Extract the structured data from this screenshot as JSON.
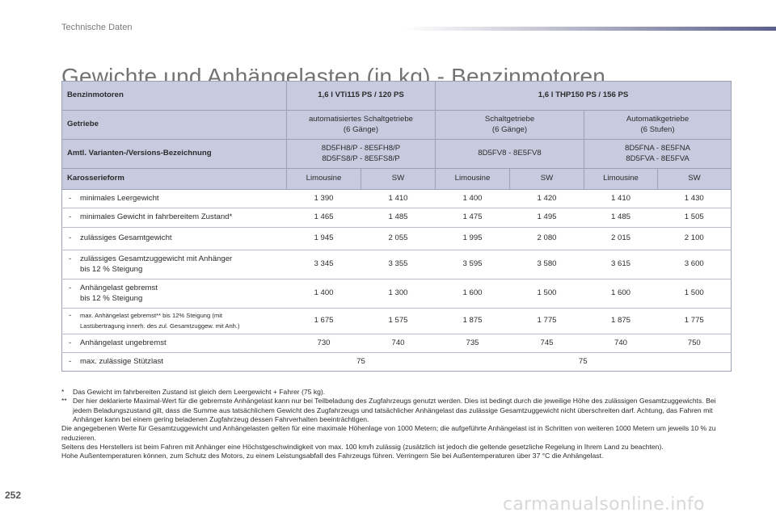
{
  "header": {
    "section": "Technische Daten"
  },
  "title": "Gewichte und Anhängelasten (in kg) - Benzinmotoren",
  "table": {
    "engine_label": "Benzinmotoren",
    "engines": [
      "1,6 l VTi115 PS / 120 PS",
      "1,6 l THP150 PS / 156 PS"
    ],
    "gearbox_label": "Getriebe",
    "gearboxes": [
      [
        "automatisiertes Schaltgetriebe",
        "(6 Gänge)"
      ],
      [
        "Schaltgetriebe",
        "(6 Gänge)"
      ],
      [
        "Automatikgetriebe",
        "(6 Stufen)"
      ]
    ],
    "variant_label": "Amtl. Varianten-/Versions-Bezeichnung",
    "variants": [
      [
        "8D5FH8/P - 8E5FH8/P",
        "8D5FS8/P - 8E5FS8/P"
      ],
      [
        "8D5FV8 - 8E5FV8"
      ],
      [
        "8D5FNA - 8E5FNA",
        "8D5FVA - 8E5FVA"
      ]
    ],
    "body_label": "Karosserieform",
    "bodies": [
      "Limousine",
      "SW",
      "Limousine",
      "SW",
      "Limousine",
      "SW"
    ],
    "rows": [
      {
        "dash": "-",
        "label": [
          "minimales Leergewicht"
        ],
        "values": [
          "1 390",
          "1 410",
          "1 400",
          "1 420",
          "1 410",
          "1 430"
        ]
      },
      {
        "dash": "-",
        "label": [
          "minimales Gewicht in fahrbereitem Zustand*"
        ],
        "values": [
          "1 465",
          "1 485",
          "1 475",
          "1 495",
          "1 485",
          "1 505"
        ]
      },
      {
        "dash": "-",
        "label": [
          "zulässiges Gesamtgewicht"
        ],
        "values": [
          "1 945",
          "2 055",
          "1 995",
          "2 080",
          "2 015",
          "2 100"
        ]
      },
      {
        "dash": "-",
        "label": [
          "zulässiges Gesamtzuggewicht mit Anhänger",
          "bis 12 % Steigung"
        ],
        "values": [
          "3 345",
          "3 355",
          "3 595",
          "3 580",
          "3 615",
          "3 600"
        ]
      },
      {
        "dash": "-",
        "label": [
          "Anhängelast gebremst",
          "bis 12 % Steigung"
        ],
        "values": [
          "1 400",
          "1 300",
          "1 600",
          "1 500",
          "1 600",
          "1 500"
        ]
      },
      {
        "dash": "-",
        "small": true,
        "label": [
          "max. Anhängelast gebremst** bis 12% Steigung (mit",
          "Lastübertragung innerh. des zul. Gesamtzuggew. mit Anh.)"
        ],
        "values": [
          "1 675",
          "1 575",
          "1 875",
          "1 775",
          "1 875",
          "1 775"
        ]
      },
      {
        "dash": "-",
        "label": [
          "Anhängelast ungebremst"
        ],
        "values": [
          "730",
          "740",
          "735",
          "745",
          "740",
          "750"
        ]
      }
    ],
    "last_row": {
      "dash": "-",
      "label": "max. zulässige Stützlast",
      "values": [
        "75",
        "75"
      ]
    }
  },
  "notes": {
    "fn1_mark": "*",
    "fn1": "Das Gewicht im fahrbereiten Zustand ist gleich dem Leergewicht + Fahrer (75 kg).",
    "fn2_mark": "**",
    "fn2": "Der hier deklarierte Maximal-Wert für die gebremste Anhängelast kann nur bei Teilbeladung des Zugfahrzeugs genutzt werden. Dies ist bedingt durch die jeweilige Höhe des zulässigen Gesamtzuggewichts. Bei jedem Beladungszustand gilt, dass die Summe aus tatsächlichem Gewicht des Zugfahrzeugs und tatsächlicher Anhängelast das zulässige Gesamtzuggewicht nicht überschreiten darf. Achtung, das Fahren mit Anhänger kann bei einem gering beladenen Zugfahrzeug dessen Fahrverhalten beeinträchtigen.",
    "para1": "Die angegebenen Werte für Gesamtzuggewicht und Anhängelasten gelten für eine maximale Höhenlage von 1000 Metern; die aufgeführte Anhängelast ist in Schritten von weiteren 1000 Metern um jeweils 10 % zu reduzieren.",
    "para2": "Seitens des Herstellers ist beim Fahren mit Anhänger eine Höchstgeschwindigkeit von max. 100 km/h zulässig (zusätzlich ist jedoch die geltende gesetzliche Regelung in Ihrem Land zu beachten).",
    "para3": "Hohe Außentemperaturen können, zum Schutz des Motors, zu einem Leistungsabfall des Fahrzeugs führen. Verringern Sie bei Außentemperaturen über 37 °C die Anhängelast."
  },
  "page_number": "252",
  "watermark": "carmanualsonline.info"
}
